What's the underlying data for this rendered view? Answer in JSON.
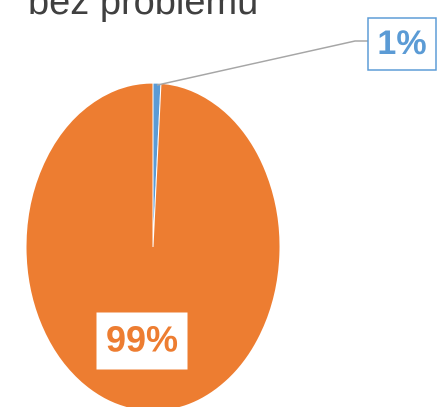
{
  "chart_data": {
    "type": "pie",
    "title": "bez problemu",
    "values": [
      1,
      99
    ],
    "value_labels": [
      "1%",
      "99%"
    ],
    "colors": [
      "#5b9bd5",
      "#ed7d31"
    ]
  }
}
